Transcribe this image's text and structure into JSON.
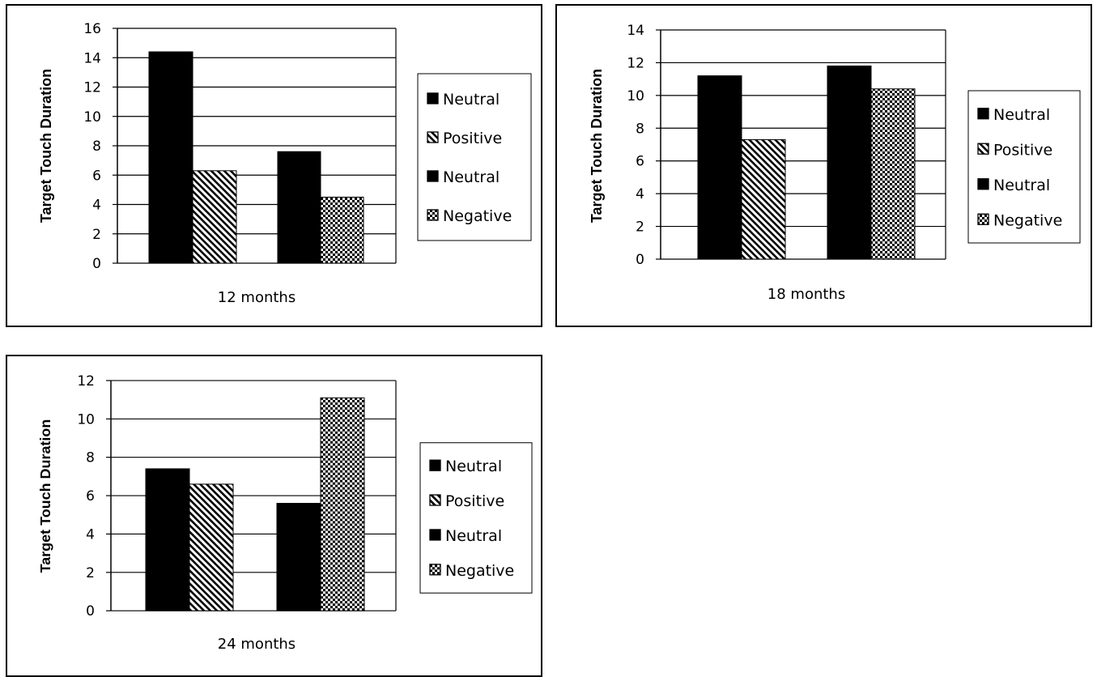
{
  "chart_data": [
    {
      "type": "bar",
      "xlabel": "12 months",
      "ylabel": "Target Touch Duration",
      "ylim": [
        0,
        16
      ],
      "yticks": [
        0,
        2,
        4,
        6,
        8,
        10,
        12,
        14,
        16
      ],
      "grid": true,
      "legend_position": "right",
      "legend": [
        "Neutral",
        "Positive",
        "Neutral",
        "Negative"
      ],
      "series": [
        {
          "name": "Neutral",
          "pattern": "solid",
          "value": 14.4
        },
        {
          "name": "Positive",
          "pattern": "diagonal",
          "value": 6.3
        },
        {
          "name": "Neutral",
          "pattern": "solid",
          "value": 7.6
        },
        {
          "name": "Negative",
          "pattern": "checker",
          "value": 4.5
        }
      ]
    },
    {
      "type": "bar",
      "xlabel": "18 months",
      "ylabel": "Target Touch Duration",
      "ylim": [
        0,
        14
      ],
      "yticks": [
        0,
        2,
        4,
        6,
        8,
        10,
        12,
        14
      ],
      "grid": true,
      "legend_position": "right",
      "legend": [
        "Neutral",
        "Positive",
        "Neutral",
        "Negative"
      ],
      "series": [
        {
          "name": "Neutral",
          "pattern": "solid",
          "value": 11.2
        },
        {
          "name": "Positive",
          "pattern": "diagonal",
          "value": 7.3
        },
        {
          "name": "Neutral",
          "pattern": "solid",
          "value": 11.8
        },
        {
          "name": "Negative",
          "pattern": "checker",
          "value": 10.4
        }
      ]
    },
    {
      "type": "bar",
      "xlabel": "24 months",
      "ylabel": "Target Touch Duration",
      "ylim": [
        0,
        12
      ],
      "yticks": [
        0,
        2,
        4,
        6,
        8,
        10,
        12
      ],
      "grid": true,
      "legend_position": "right",
      "legend": [
        "Neutral",
        "Positive",
        "Neutral",
        "Negative"
      ],
      "series": [
        {
          "name": "Neutral",
          "pattern": "solid",
          "value": 7.4
        },
        {
          "name": "Positive",
          "pattern": "diagonal",
          "value": 6.6
        },
        {
          "name": "Neutral",
          "pattern": "solid",
          "value": 5.6
        },
        {
          "name": "Negative",
          "pattern": "checker",
          "value": 11.1
        }
      ]
    }
  ],
  "colors": {
    "bar": "#000000",
    "background": "#ffffff",
    "grid": "#000000"
  }
}
